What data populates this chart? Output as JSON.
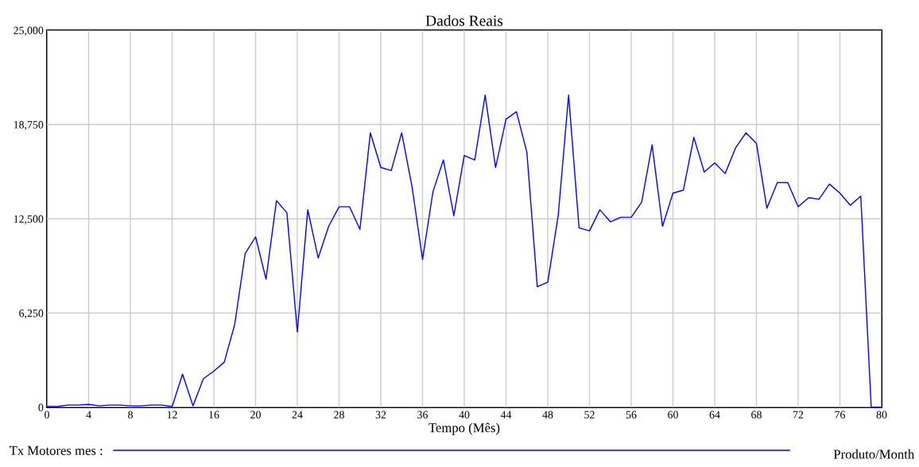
{
  "chart_data": {
    "type": "line",
    "title": "Dados Reais",
    "xlabel": "Tempo (Mês)",
    "x": [
      0,
      1,
      2,
      3,
      4,
      5,
      6,
      7,
      8,
      9,
      10,
      11,
      12,
      13,
      14,
      15,
      16,
      17,
      18,
      19,
      20,
      21,
      22,
      23,
      24,
      25,
      26,
      27,
      28,
      29,
      30,
      31,
      32,
      33,
      34,
      35,
      36,
      37,
      38,
      39,
      40,
      41,
      42,
      43,
      44,
      45,
      46,
      47,
      48,
      49,
      50,
      51,
      52,
      53,
      54,
      55,
      56,
      57,
      58,
      59,
      60,
      61,
      62,
      63,
      64,
      65,
      66,
      67,
      68,
      69,
      70,
      71,
      72,
      73,
      74,
      75,
      76,
      77,
      78,
      79,
      80
    ],
    "series": [
      {
        "name": "Tx Motores mes :",
        "color": "#0000ff",
        "values": [
          50,
          50,
          150,
          150,
          200,
          100,
          150,
          150,
          100,
          100,
          150,
          150,
          50,
          2200,
          100,
          1900,
          2400,
          3000,
          5500,
          10200,
          11300,
          8500,
          13700,
          12900,
          5000,
          13100,
          9900,
          12000,
          13300,
          13300,
          11800,
          18200,
          15900,
          15700,
          18200,
          14600,
          9800,
          14300,
          16400,
          12700,
          16700,
          16400,
          20700,
          15900,
          19100,
          19600,
          16900,
          8000,
          8300,
          12700,
          20700,
          11900,
          11700,
          13100,
          12300,
          12600,
          12600,
          13600,
          17400,
          12000,
          14200,
          14400,
          17900,
          15600,
          16200,
          15500,
          17200,
          18200,
          17500,
          13200,
          14900,
          14900,
          13300,
          13900,
          13800,
          14800,
          14200,
          13400,
          14000,
          0,
          0
        ]
      }
    ],
    "xlim": [
      0,
      80
    ],
    "xticks": [
      0,
      4,
      8,
      12,
      16,
      20,
      24,
      28,
      32,
      36,
      40,
      44,
      48,
      52,
      56,
      60,
      64,
      68,
      72,
      76,
      80
    ],
    "ylim": [
      0,
      25000
    ],
    "yticks": [
      0,
      {
        "value": 6250,
        "label": "6,250"
      },
      {
        "value": 12500,
        "label": "12,500"
      },
      {
        "value": 18750,
        "label": "18,750"
      },
      {
        "value": 25000,
        "label": "25,000"
      }
    ],
    "grid": true,
    "legend": "bottom",
    "marker": "none",
    "line_style": "solid",
    "annotations": [
      "Produto/Month"
    ]
  }
}
